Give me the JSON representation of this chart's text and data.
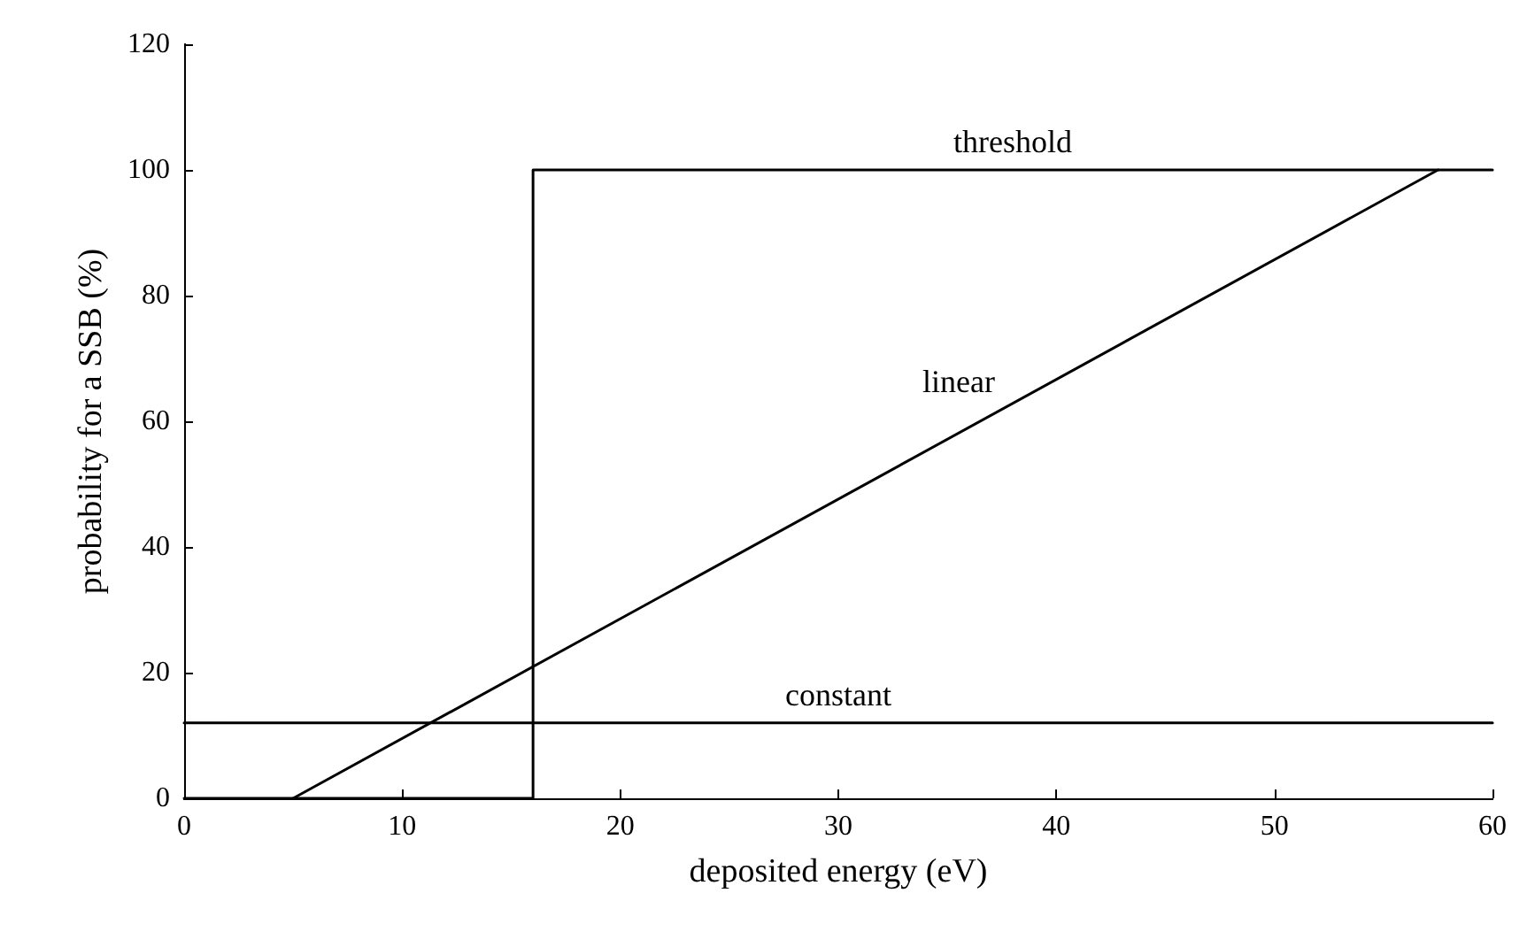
{
  "chart_data": {
    "type": "line",
    "xlabel": "deposited energy (eV)",
    "ylabel": "probability for a SSB (%)",
    "xlim": [
      0,
      60
    ],
    "xticks": [
      0,
      10,
      20,
      30,
      40,
      50,
      60
    ],
    "ylim": [
      0,
      120
    ],
    "yticks": [
      0,
      20,
      40,
      60,
      80,
      100,
      120
    ],
    "grid": false,
    "legend": false,
    "marker": "none",
    "line_style": "solid",
    "series": [
      {
        "name": "threshold",
        "color": "#000000",
        "x": [
          0,
          16,
          16,
          60
        ],
        "values": [
          0,
          0,
          100,
          100
        ]
      },
      {
        "name": "linear",
        "color": "#000000",
        "x": [
          5,
          57.5
        ],
        "values": [
          0,
          100
        ]
      },
      {
        "name": "constant",
        "color": "#000000",
        "x": [
          0,
          60
        ],
        "values": [
          12,
          12
        ]
      }
    ]
  }
}
